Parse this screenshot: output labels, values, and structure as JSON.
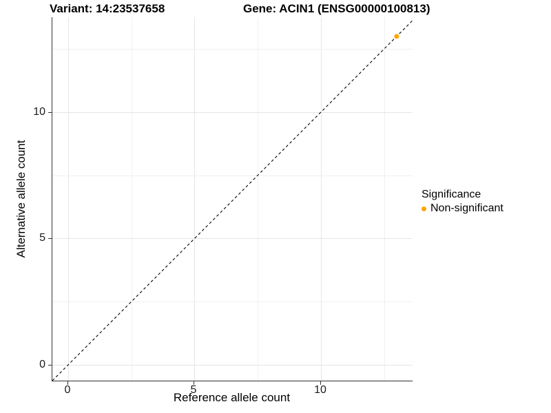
{
  "titles": {
    "variant": "Variant: 14:23537658",
    "gene": "Gene: ACIN1 (ENSG00000100813)"
  },
  "axes": {
    "x": {
      "label": "Reference allele count",
      "tick_labels": [
        "0",
        "5",
        "10"
      ]
    },
    "y": {
      "label": "Alternative allele count",
      "tick_labels": [
        "0",
        "5",
        "10"
      ]
    }
  },
  "legend": {
    "title": "Significance",
    "items": [
      {
        "label": "Non-significant",
        "color": "#FFA500"
      }
    ]
  },
  "chart_data": {
    "type": "scatter",
    "title": "Variant: 14:23537658 — Gene: ACIN1 (ENSG00000100813)",
    "xlabel": "Reference allele count",
    "ylabel": "Alternative allele count",
    "xlim": [
      -0.63,
      13.63
    ],
    "ylim": [
      -0.63,
      13.76
    ],
    "x_ticks": [
      0,
      5,
      10
    ],
    "y_ticks": [
      0,
      5,
      10
    ],
    "grid": "major and minor gridlines, light grey on white",
    "minor_grid_step": 2.5,
    "legend_position": "right",
    "series": [
      {
        "name": "Non-significant",
        "color": "#FFA500",
        "points": [
          {
            "x": 13,
            "y": 13
          }
        ]
      }
    ],
    "reference_line": {
      "type": "identity",
      "slope": 1,
      "intercept": 0,
      "style": "dashed",
      "color": "#000000"
    }
  }
}
